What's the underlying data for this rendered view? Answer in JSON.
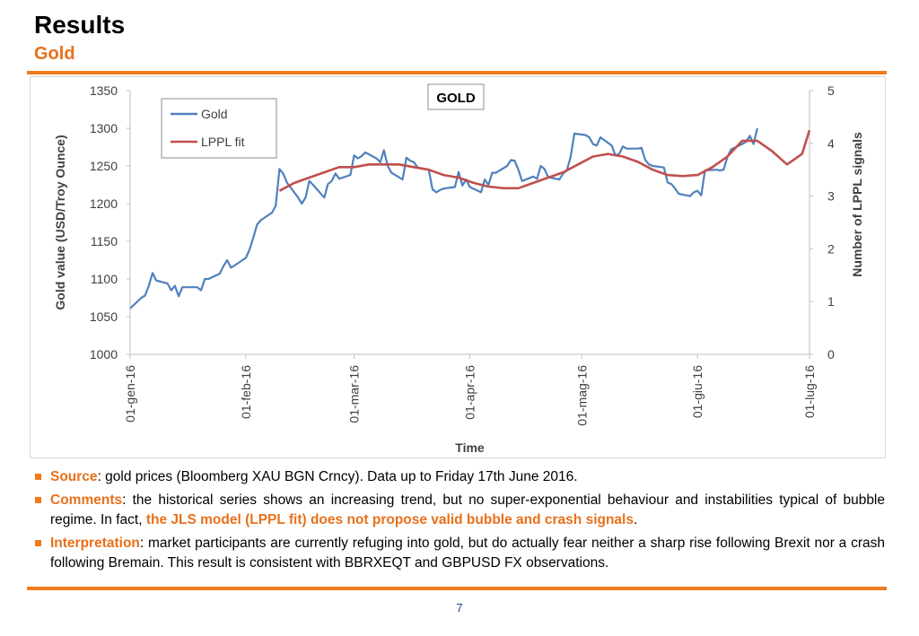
{
  "header": {
    "title": "Results",
    "subtitle": "Gold"
  },
  "chart_data": {
    "type": "line",
    "title": "GOLD",
    "xlabel": "Time",
    "ylabel": "Gold value (USD/Troy Ounce)",
    "y2label": "Number of LPPL signals",
    "ylim": [
      1000,
      1350
    ],
    "y2lim": [
      0,
      5
    ],
    "yticks": [
      "1000",
      "1050",
      "1100",
      "1150",
      "1200",
      "1250",
      "1300",
      "1350"
    ],
    "y2ticks": [
      "0",
      "1",
      "2",
      "3",
      "4",
      "5"
    ],
    "xticks": [
      "01-gen-16",
      "01-feb-16",
      "01-mar-16",
      "01-apr-16",
      "01-mag-16",
      "01-giu-16",
      "01-lug-16"
    ],
    "legend_position": "top-left",
    "grid": false,
    "series": [
      {
        "name": "Gold",
        "color": "#4f81bd",
        "axis": "left",
        "x": [
          "2016-01-01",
          "2016-01-04",
          "2016-01-05",
          "2016-01-06",
          "2016-01-07",
          "2016-01-08",
          "2016-01-11",
          "2016-01-12",
          "2016-01-13",
          "2016-01-14",
          "2016-01-15",
          "2016-01-18",
          "2016-01-19",
          "2016-01-20",
          "2016-01-21",
          "2016-01-22",
          "2016-01-25",
          "2016-01-26",
          "2016-01-27",
          "2016-01-28",
          "2016-01-29",
          "2016-02-01",
          "2016-02-02",
          "2016-02-03",
          "2016-02-04",
          "2016-02-05",
          "2016-02-08",
          "2016-02-09",
          "2016-02-10",
          "2016-02-11",
          "2016-02-12",
          "2016-02-15",
          "2016-02-16",
          "2016-02-17",
          "2016-02-18",
          "2016-02-19",
          "2016-02-22",
          "2016-02-23",
          "2016-02-24",
          "2016-02-25",
          "2016-02-26",
          "2016-02-29",
          "2016-03-01",
          "2016-03-02",
          "2016-03-03",
          "2016-03-04",
          "2016-03-07",
          "2016-03-08",
          "2016-03-09",
          "2016-03-10",
          "2016-03-11",
          "2016-03-14",
          "2016-03-15",
          "2016-03-16",
          "2016-03-17",
          "2016-03-18",
          "2016-03-21",
          "2016-03-22",
          "2016-03-23",
          "2016-03-24",
          "2016-03-25",
          "2016-03-28",
          "2016-03-29",
          "2016-03-30",
          "2016-03-31",
          "2016-04-01",
          "2016-04-04",
          "2016-04-05",
          "2016-04-06",
          "2016-04-07",
          "2016-04-08",
          "2016-04-11",
          "2016-04-12",
          "2016-04-13",
          "2016-04-14",
          "2016-04-15",
          "2016-04-18",
          "2016-04-19",
          "2016-04-20",
          "2016-04-21",
          "2016-04-22",
          "2016-04-25",
          "2016-04-26",
          "2016-04-27",
          "2016-04-28",
          "2016-04-29",
          "2016-05-02",
          "2016-05-03",
          "2016-05-04",
          "2016-05-05",
          "2016-05-06",
          "2016-05-09",
          "2016-05-10",
          "2016-05-11",
          "2016-05-12",
          "2016-05-13",
          "2016-05-16",
          "2016-05-17",
          "2016-05-18",
          "2016-05-19",
          "2016-05-20",
          "2016-05-23",
          "2016-05-24",
          "2016-05-25",
          "2016-05-26",
          "2016-05-27",
          "2016-05-30",
          "2016-05-31",
          "2016-06-01",
          "2016-06-02",
          "2016-06-03",
          "2016-06-06",
          "2016-06-07",
          "2016-06-08",
          "2016-06-09",
          "2016-06-10",
          "2016-06-13",
          "2016-06-14",
          "2016-06-15",
          "2016-06-16",
          "2016-06-17"
        ],
        "values": [
          1061,
          1075,
          1078,
          1091,
          1108,
          1098,
          1094,
          1085,
          1091,
          1077,
          1089,
          1089,
          1089,
          1085,
          1100,
          1100,
          1107,
          1117,
          1125,
          1115,
          1118,
          1128,
          1139,
          1155,
          1172,
          1178,
          1188,
          1197,
          1246,
          1240,
          1228,
          1208,
          1200,
          1208,
          1230,
          1225,
          1208,
          1226,
          1230,
          1240,
          1233,
          1238,
          1264,
          1260,
          1263,
          1268,
          1260,
          1255,
          1271,
          1250,
          1241,
          1232,
          1261,
          1257,
          1255,
          1248,
          1245,
          1219,
          1215,
          1218,
          1220,
          1222,
          1242,
          1224,
          1232,
          1222,
          1215,
          1232,
          1225,
          1241,
          1241,
          1250,
          1258,
          1257,
          1245,
          1230,
          1236,
          1233,
          1250,
          1246,
          1235,
          1232,
          1240,
          1244,
          1262,
          1293,
          1291,
          1288,
          1279,
          1277,
          1288,
          1277,
          1264,
          1266,
          1276,
          1273,
          1273,
          1274,
          1258,
          1252,
          1250,
          1248,
          1228,
          1226,
          1220,
          1213,
          1210,
          1215,
          1217,
          1211,
          1244,
          1245,
          1244,
          1245,
          1262,
          1272,
          1279,
          1282,
          1290,
          1279,
          1300
        ]
      },
      {
        "name": "LPPL fit",
        "color": "#c0504d",
        "axis": "right",
        "x": [
          "2016-02-10",
          "2016-02-14",
          "2016-02-18",
          "2016-02-22",
          "2016-02-26",
          "2016-03-01",
          "2016-03-05",
          "2016-03-09",
          "2016-03-13",
          "2016-03-17",
          "2016-03-21",
          "2016-03-25",
          "2016-03-29",
          "2016-04-02",
          "2016-04-06",
          "2016-04-10",
          "2016-04-14",
          "2016-04-18",
          "2016-04-22",
          "2016-04-26",
          "2016-04-30",
          "2016-05-04",
          "2016-05-08",
          "2016-05-12",
          "2016-05-16",
          "2016-05-20",
          "2016-05-24",
          "2016-05-28",
          "2016-06-01",
          "2016-06-05",
          "2016-06-09",
          "2016-06-13",
          "2016-06-17",
          "2016-06-21",
          "2016-06-25",
          "2016-06-29",
          "2016-07-01"
        ],
        "values": [
          3.1,
          3.25,
          3.35,
          3.45,
          3.55,
          3.55,
          3.6,
          3.6,
          3.6,
          3.55,
          3.5,
          3.4,
          3.35,
          3.25,
          3.18,
          3.15,
          3.15,
          3.25,
          3.35,
          3.45,
          3.6,
          3.75,
          3.8,
          3.75,
          3.65,
          3.5,
          3.4,
          3.38,
          3.4,
          3.55,
          3.75,
          4.05,
          4.05,
          3.85,
          3.6,
          3.8,
          4.25
        ]
      }
    ]
  },
  "bullets": [
    {
      "lead": "Source",
      "parts": [
        ": gold prices (Bloomberg XAU BGN Crncy). Data up to Friday 17th June 2016."
      ]
    },
    {
      "lead": "Comments",
      "parts": [
        ": the historical series shows an increasing trend, but no super-exponential behaviour and instabilities typical of bubble regime. In fact, ",
        "the JLS model (LPPL fit) does not propose valid bubble and crash signals",
        "."
      ]
    },
    {
      "lead": "Interpretation",
      "parts": [
        ": market participants are currently refuging into gold, but do actually fear neither a sharp rise following Brexit nor a crash following Bremain. This result is consistent with BBRXEQT and GBPUSD FX observations."
      ]
    }
  ],
  "footer": {
    "page_number": "7"
  }
}
